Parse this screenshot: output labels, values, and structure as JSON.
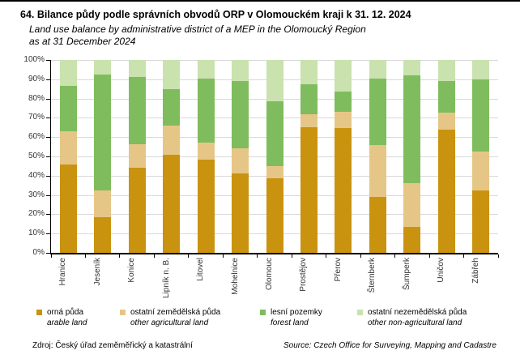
{
  "header": {
    "title_cs": "64. Bilance půdy podle správních obvodů ORP v Olomouckém kraji k 31. 12. 2024",
    "title_en_line1": "Land use balance by administrative district of a MEP in the Olomoucký Region",
    "title_en_line2": "as at 31 December 2024"
  },
  "chart_data": {
    "type": "bar",
    "stacked": true,
    "stacking": "percent",
    "title": "Bilance půdy podle správních obvodů ORP v Olomouckém kraji k 31. 12. 2024",
    "categories": [
      "Hranice",
      "Jeseník",
      "Konice",
      "Lipník n. B.",
      "Litovel",
      "Mohelnice",
      "Olomouc",
      "Prostějov",
      "Přerov",
      "Šternberk",
      "Šumperk",
      "Uničov",
      "Zábřeh"
    ],
    "series": [
      {
        "name_cs": "orná půda",
        "name_en": "arable land",
        "color": "#C9930F",
        "values": [
          46,
          18.5,
          44,
          51,
          48.5,
          41,
          38.5,
          65,
          64.5,
          29,
          13.5,
          64,
          32.5
        ]
      },
      {
        "name_cs": "ostatní zemědělská půda",
        "name_en": "other agricultural land",
        "color": "#E6C686",
        "values": [
          17,
          14,
          12.5,
          15,
          8.5,
          13,
          6.5,
          7,
          8.5,
          27,
          22.5,
          8.5,
          20
        ]
      },
      {
        "name_cs": "lesní pozemky",
        "name_en": "forest land",
        "color": "#7FBC5D",
        "values": [
          23.5,
          60,
          34.5,
          19,
          33.5,
          35,
          33.5,
          15.5,
          10.5,
          34.5,
          56,
          16.5,
          37.5
        ]
      },
      {
        "name_cs": "ostatní nezemědělská půda",
        "name_en": "other non-agricultural land",
        "color": "#C9E2AE",
        "values": [
          13.5,
          7.5,
          9,
          15,
          9.5,
          11,
          21.5,
          12.5,
          16.5,
          9.5,
          8,
          11,
          10
        ]
      }
    ],
    "y_axis": {
      "min": 0,
      "max": 100,
      "step": 10,
      "tick_labels": [
        "0%",
        "10%",
        "20%",
        "30%",
        "40%",
        "50%",
        "60%",
        "70%",
        "80%",
        "90%",
        "100%"
      ]
    },
    "ylim": [
      0,
      100
    ],
    "grid": true,
    "legend_position": "bottom"
  },
  "footer": {
    "source_cs": "Zdroj: Český úřad zeměměřický a katastrální",
    "source_en": "Source: Czech Office for Surveying, Mapping and Cadastre"
  }
}
